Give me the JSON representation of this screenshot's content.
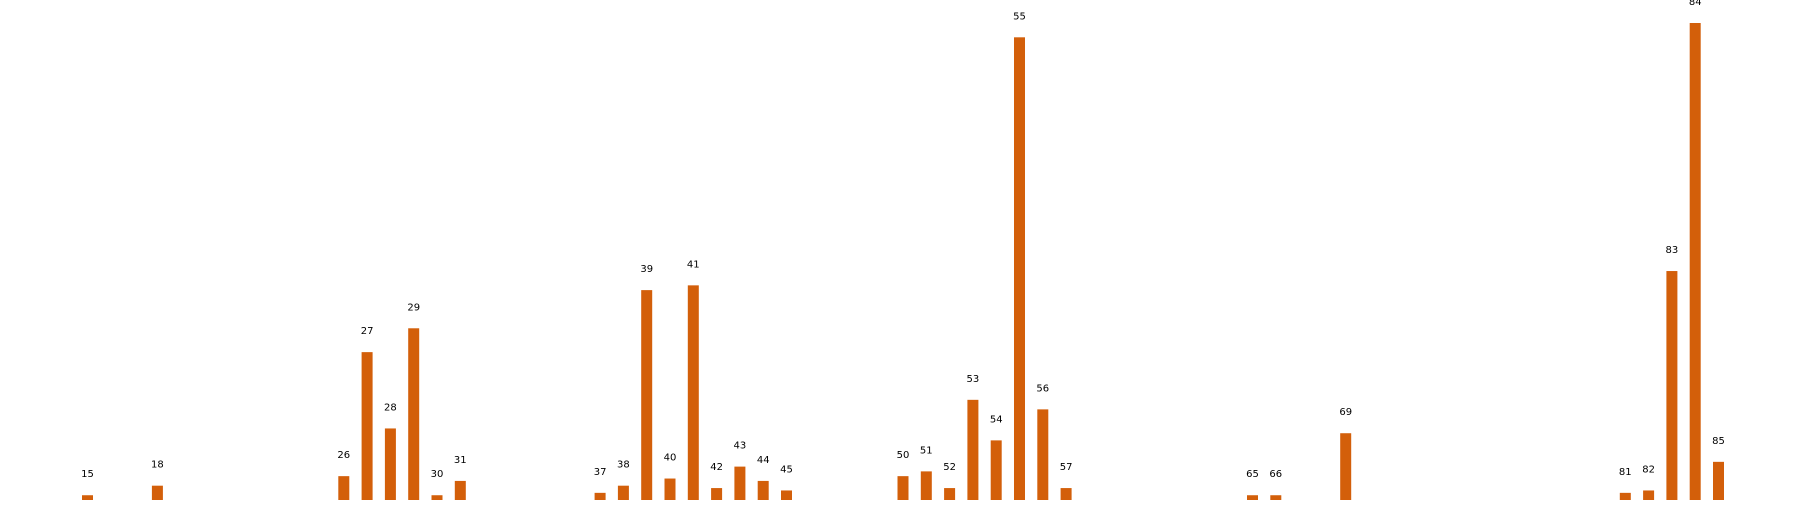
{
  "chart_data": {
    "type": "bar",
    "title": "",
    "xlabel": "",
    "ylabel": "",
    "grid": false,
    "legend": "none",
    "colors": {
      "bar": "#d35f0a"
    },
    "ylim": [
      0,
      100
    ],
    "bars": [
      {
        "label": "15",
        "value": 1.0
      },
      {
        "label": "18",
        "value": 3.0
      },
      {
        "label": "26",
        "value": 5.0
      },
      {
        "label": "27",
        "value": 31.0
      },
      {
        "label": "28",
        "value": 15.0
      },
      {
        "label": "29",
        "value": 36.0
      },
      {
        "label": "30",
        "value": 1.0
      },
      {
        "label": "31",
        "value": 4.0
      },
      {
        "label": "37",
        "value": 1.5
      },
      {
        "label": "38",
        "value": 3.0
      },
      {
        "label": "39",
        "value": 44.0
      },
      {
        "label": "40",
        "value": 4.5
      },
      {
        "label": "41",
        "value": 45.0
      },
      {
        "label": "42",
        "value": 2.5
      },
      {
        "label": "43",
        "value": 7.0
      },
      {
        "label": "44",
        "value": 4.0
      },
      {
        "label": "45",
        "value": 2.0
      },
      {
        "label": "50",
        "value": 5.0
      },
      {
        "label": "51",
        "value": 6.0
      },
      {
        "label": "52",
        "value": 2.5
      },
      {
        "label": "53",
        "value": 21.0
      },
      {
        "label": "54",
        "value": 12.5
      },
      {
        "label": "55",
        "value": 97.0
      },
      {
        "label": "56",
        "value": 19.0
      },
      {
        "label": "57",
        "value": 2.5
      },
      {
        "label": "65",
        "value": 1.0
      },
      {
        "label": "66",
        "value": 1.0
      },
      {
        "label": "69",
        "value": 14.0
      },
      {
        "label": "81",
        "value": 1.5
      },
      {
        "label": "82",
        "value": 2.0
      },
      {
        "label": "83",
        "value": 48.0
      },
      {
        "label": "84",
        "value": 100.0
      },
      {
        "label": "85",
        "value": 8.0
      }
    ]
  }
}
